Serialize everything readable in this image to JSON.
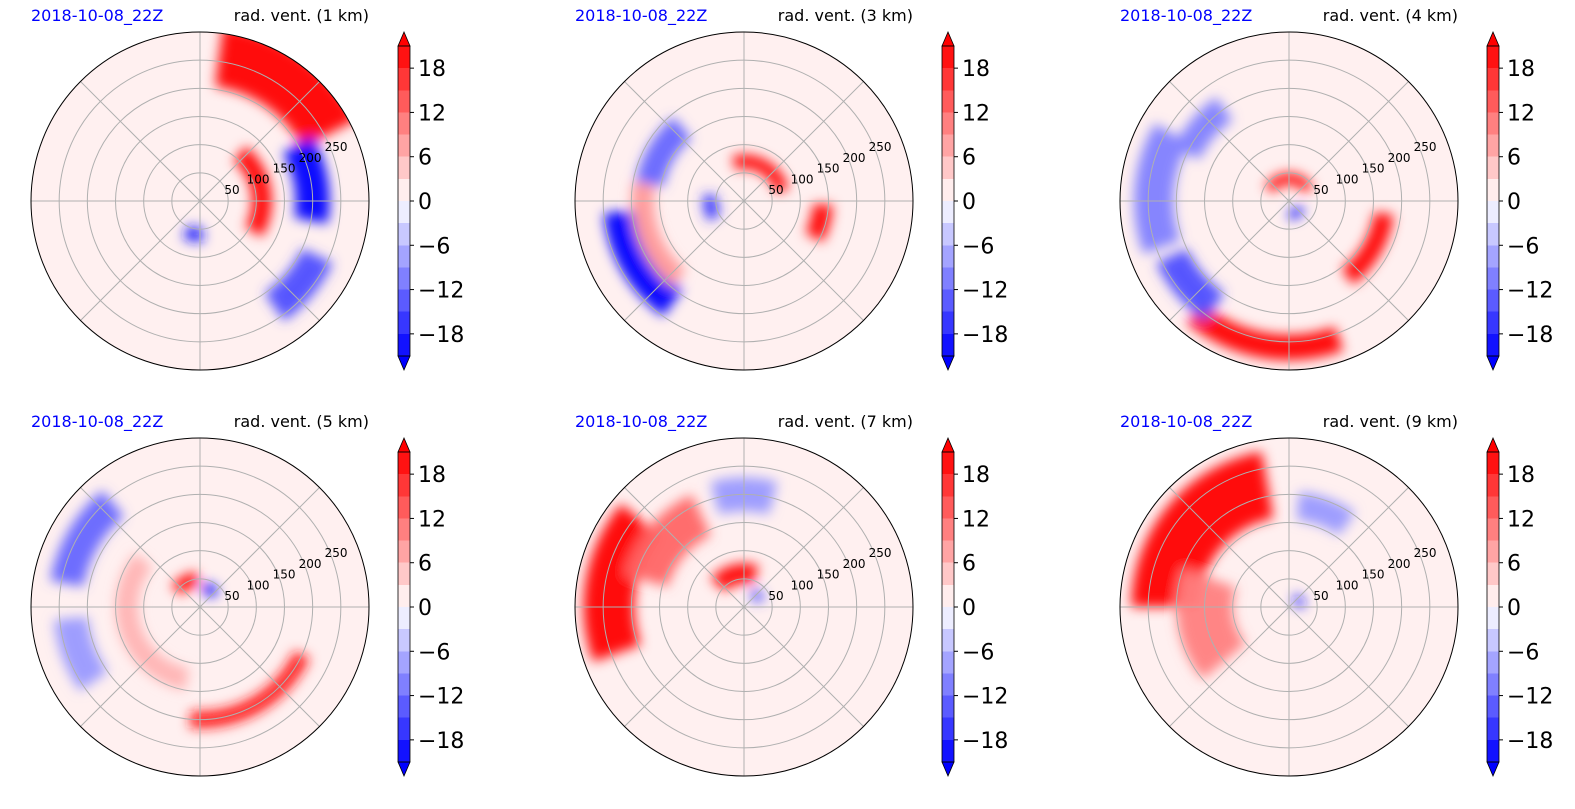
{
  "figure": {
    "colors": {
      "date_label": "#0000ff",
      "positive": "#ff0000",
      "negative": "#0000ff",
      "background_field": "#fff0f0",
      "grid": "#b0b0b0"
    }
  },
  "chart_data": [
    {
      "type": "heatmap",
      "date_label": "2018-10-08_22Z",
      "title": "rad. vent. (1 km)",
      "r_ticks": [
        "50",
        "100",
        "150",
        "200",
        "250"
      ],
      "r_max": 300,
      "colorbar": {
        "ticks": [
          "18",
          "12",
          "6",
          "0",
          "−6",
          "−12",
          "−18"
        ],
        "vmin": -21,
        "vmax": 21,
        "extend": "both"
      },
      "features": [
        {
          "sign": 1,
          "r": 260,
          "theta": 55,
          "width": 110,
          "arc": 55,
          "intensity": 1.0
        },
        {
          "sign": 1,
          "r": 110,
          "theta": 10,
          "width": 35,
          "arc": 80,
          "intensity": 1.0
        },
        {
          "sign": -1,
          "r": 200,
          "theta": 10,
          "width": 60,
          "arc": 40,
          "intensity": 1.0
        },
        {
          "sign": -1,
          "r": 230,
          "theta": -40,
          "width": 60,
          "arc": 30,
          "intensity": 0.7
        },
        {
          "sign": -1,
          "r": 60,
          "theta": -100,
          "width": 25,
          "arc": 30,
          "intensity": 0.9
        }
      ]
    },
    {
      "type": "heatmap",
      "date_label": "2018-10-08_22Z",
      "title": "rad. vent. (3 km)",
      "r_ticks": [
        "50",
        "100",
        "150",
        "200",
        "250"
      ],
      "r_max": 300,
      "colorbar": {
        "ticks": [
          "18",
          "12",
          "6",
          "0",
          "−6",
          "−12",
          "−18"
        ],
        "vmin": -21,
        "vmax": 21,
        "extend": "both"
      },
      "features": [
        {
          "sign": 1,
          "r": 70,
          "theta": 60,
          "width": 25,
          "arc": 90,
          "intensity": 1.0
        },
        {
          "sign": 1,
          "r": 140,
          "theta": -15,
          "width": 35,
          "arc": 25,
          "intensity": 1.0
        },
        {
          "sign": -1,
          "r": 220,
          "theta": -150,
          "width": 60,
          "arc": 50,
          "intensity": 1.0
        },
        {
          "sign": -1,
          "r": 170,
          "theta": 150,
          "width": 50,
          "arc": 40,
          "intensity": 0.6
        },
        {
          "sign": 1,
          "r": 180,
          "theta": -160,
          "width": 40,
          "arc": 60,
          "intensity": 0.4
        },
        {
          "sign": -1,
          "r": 60,
          "theta": -170,
          "width": 25,
          "arc": 40,
          "intensity": 0.8
        }
      ]
    },
    {
      "type": "heatmap",
      "date_label": "2018-10-08_22Z",
      "title": "rad. vent. (4 km)",
      "r_ticks": [
        "50",
        "100",
        "150",
        "200",
        "250"
      ],
      "r_max": 300,
      "colorbar": {
        "ticks": [
          "18",
          "12",
          "6",
          "0",
          "−6",
          "−12",
          "−18"
        ],
        "vmin": -21,
        "vmax": 21,
        "extend": "both"
      },
      "features": [
        {
          "sign": 1,
          "r": 40,
          "theta": 90,
          "width": 20,
          "arc": 120,
          "intensity": 1.0
        },
        {
          "sign": -1,
          "r": 25,
          "theta": -60,
          "width": 15,
          "arc": 60,
          "intensity": 1.0
        },
        {
          "sign": 1,
          "r": 170,
          "theta": -30,
          "width": 35,
          "arc": 45,
          "intensity": 1.0
        },
        {
          "sign": 1,
          "r": 260,
          "theta": -100,
          "width": 45,
          "arc": 60,
          "intensity": 1.0
        },
        {
          "sign": -1,
          "r": 240,
          "theta": 175,
          "width": 70,
          "arc": 50,
          "intensity": 0.5
        },
        {
          "sign": -1,
          "r": 230,
          "theta": -140,
          "width": 60,
          "arc": 30,
          "intensity": 0.7
        },
        {
          "sign": -1,
          "r": 200,
          "theta": 140,
          "width": 50,
          "arc": 30,
          "intensity": 0.5
        }
      ]
    },
    {
      "type": "heatmap",
      "date_label": "2018-10-08_22Z",
      "title": "rad. vent. (5 km)",
      "r_ticks": [
        "50",
        "100",
        "150",
        "200",
        "250"
      ],
      "r_max": 300,
      "colorbar": {
        "ticks": [
          "18",
          "12",
          "6",
          "0",
          "−6",
          "−12",
          "−18"
        ],
        "vmin": -21,
        "vmax": 21,
        "extend": "both"
      },
      "features": [
        {
          "sign": 1,
          "r": 50,
          "theta": 120,
          "width": 25,
          "arc": 50,
          "intensity": 1.0
        },
        {
          "sign": -1,
          "r": 35,
          "theta": 60,
          "width": 20,
          "arc": 40,
          "intensity": 1.0
        },
        {
          "sign": 1,
          "r": 200,
          "theta": -60,
          "width": 30,
          "arc": 70,
          "intensity": 0.9
        },
        {
          "sign": 1,
          "r": 130,
          "theta": -160,
          "width": 40,
          "arc": 120,
          "intensity": 0.3
        },
        {
          "sign": -1,
          "r": 240,
          "theta": 150,
          "width": 60,
          "arc": 40,
          "intensity": 0.6
        },
        {
          "sign": -1,
          "r": 230,
          "theta": -160,
          "width": 60,
          "arc": 30,
          "intensity": 0.4
        }
      ]
    },
    {
      "type": "heatmap",
      "date_label": "2018-10-08_22Z",
      "title": "rad. vent. (7 km)",
      "r_ticks": [
        "50",
        "100",
        "150",
        "200",
        "250"
      ],
      "r_max": 300,
      "colorbar": {
        "ticks": [
          "18",
          "12",
          "6",
          "0",
          "−6",
          "−12",
          "−18"
        ],
        "vmin": -21,
        "vmax": 21,
        "extend": "both"
      },
      "features": [
        {
          "sign": 1,
          "r": 60,
          "theta": 105,
          "width": 35,
          "arc": 70,
          "intensity": 1.0
        },
        {
          "sign": 1,
          "r": 240,
          "theta": 170,
          "width": 90,
          "arc": 60,
          "intensity": 1.0
        },
        {
          "sign": 1,
          "r": 180,
          "theta": 140,
          "width": 80,
          "arc": 50,
          "intensity": 0.6
        },
        {
          "sign": -1,
          "r": 200,
          "theta": 90,
          "width": 60,
          "arc": 30,
          "intensity": 0.4
        },
        {
          "sign": -1,
          "r": 30,
          "theta": 40,
          "width": 20,
          "arc": 40,
          "intensity": 0.7
        }
      ]
    },
    {
      "type": "heatmap",
      "date_label": "2018-10-08_22Z",
      "title": "rad. vent. (9 km)",
      "r_ticks": [
        "50",
        "100",
        "150",
        "200",
        "250"
      ],
      "r_max": 300,
      "colorbar": {
        "ticks": [
          "18",
          "12",
          "6",
          "0",
          "−6",
          "−12",
          "−18"
        ],
        "vmin": -21,
        "vmax": 21,
        "extend": "both"
      },
      "features": [
        {
          "sign": 1,
          "r": 220,
          "theta": 140,
          "width": 120,
          "arc": 80,
          "intensity": 1.0
        },
        {
          "sign": 1,
          "r": 150,
          "theta": -170,
          "width": 100,
          "arc": 60,
          "intensity": 0.5
        },
        {
          "sign": -1,
          "r": 20,
          "theta": 30,
          "width": 15,
          "arc": 60,
          "intensity": 0.9
        },
        {
          "sign": -1,
          "r": 180,
          "theta": 70,
          "width": 50,
          "arc": 30,
          "intensity": 0.4
        }
      ]
    }
  ]
}
